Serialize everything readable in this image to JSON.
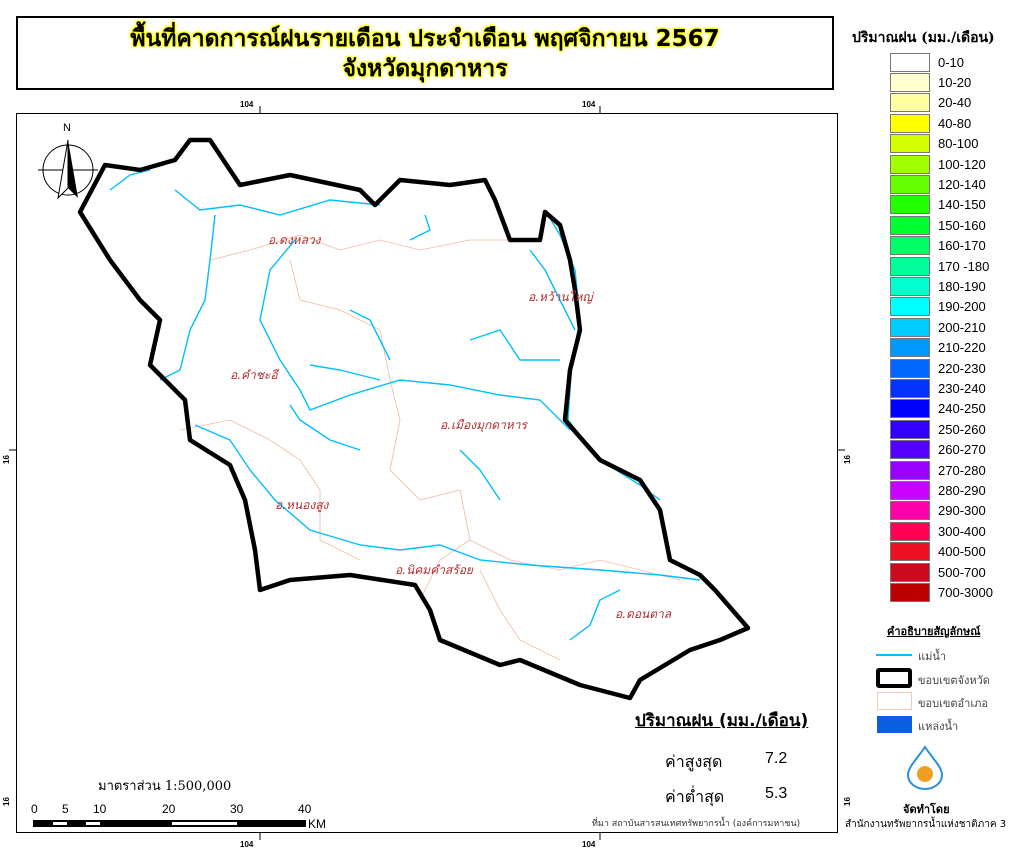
{
  "title": {
    "line1": "พื้นที่คาดการณ์ฝนรายเดือน ประจำเดือน พฤศจิกายน 2567",
    "line2": "จังหวัดมุกดาหาร"
  },
  "grid_labels": {
    "lon": "104",
    "lat": "16"
  },
  "north_arrow": "N",
  "districts": [
    "อ.ดงหลวง",
    "อ.หว้านใหญ่",
    "อ.คำชะอี",
    "อ.เมืองมุกดาหาร",
    "อ.หนองสูง",
    "อ.นิคมคำสร้อย",
    "อ.ดอนตาล"
  ],
  "legend": {
    "title": "ปริมาณฝน (มม./เดือน)",
    "classes": [
      {
        "label": "0-10",
        "color": "#ffffff"
      },
      {
        "label": "10-20",
        "color": "#ffffd0"
      },
      {
        "label": "20-40",
        "color": "#ffffa0"
      },
      {
        "label": "40-80",
        "color": "#ffff00"
      },
      {
        "label": "80-100",
        "color": "#d4ff00"
      },
      {
        "label": "100-120",
        "color": "#a0ff00"
      },
      {
        "label": "120-140",
        "color": "#66ff00"
      },
      {
        "label": "140-150",
        "color": "#22ff00"
      },
      {
        "label": "150-160",
        "color": "#00ff30"
      },
      {
        "label": "160-170",
        "color": "#00ff66"
      },
      {
        "label": "170 -180",
        "color": "#00ff99"
      },
      {
        "label": "180-190",
        "color": "#00ffcc"
      },
      {
        "label": "190-200",
        "color": "#00ffff"
      },
      {
        "label": "200-210",
        "color": "#00ccff"
      },
      {
        "label": "210-220",
        "color": "#0099ff"
      },
      {
        "label": "220-230",
        "color": "#0066ff"
      },
      {
        "label": "230-240",
        "color": "#0033ff"
      },
      {
        "label": "240-250",
        "color": "#0000ff"
      },
      {
        "label": "250-260",
        "color": "#3300ff"
      },
      {
        "label": "260-270",
        "color": "#5500ff"
      },
      {
        "label": "270-280",
        "color": "#9900ff"
      },
      {
        "label": "280-290",
        "color": "#cc00ff"
      },
      {
        "label": "290-300",
        "color": "#ff00aa"
      },
      {
        "label": "300-400",
        "color": "#ff0055"
      },
      {
        "label": "400-500",
        "color": "#ee1122"
      },
      {
        "label": "500-700",
        "color": "#cc0a1e"
      },
      {
        "label": "700-3000",
        "color": "#bb0000"
      }
    ]
  },
  "symbols": {
    "title": "คำอธิบายสัญลักษณ์",
    "river": "แม่น้ำ",
    "province_boundary": "ขอบเขตจังหวัด",
    "district_boundary": "ขอบเขตอำเภอ",
    "water_body": "แหล่งน้ำ"
  },
  "producer": {
    "label": "จัดทำโดย",
    "org": "สำนักงานทรัพยากรน้ำแห่งชาติภาค 3"
  },
  "stats": {
    "title": "ปริมาณฝน (มม./เดือน)",
    "max_label": "ค่าสูงสุด",
    "max": "7.2",
    "min_label": "ค่าต่ำสุด",
    "min": "5.3"
  },
  "scale": {
    "text": "มาตราส่วน 1:500,000",
    "ticks": [
      "0",
      "5",
      "10",
      "20",
      "30",
      "40"
    ],
    "unit": "KM"
  },
  "source": "ที่มา  สถาบันสารสนเทศทรัพยากรน้ำ (องค์การมหาชน)",
  "colors": {
    "river": "#00bfff",
    "district_boundary": "#f4b8a0",
    "water_body": "#0a5fe0"
  }
}
